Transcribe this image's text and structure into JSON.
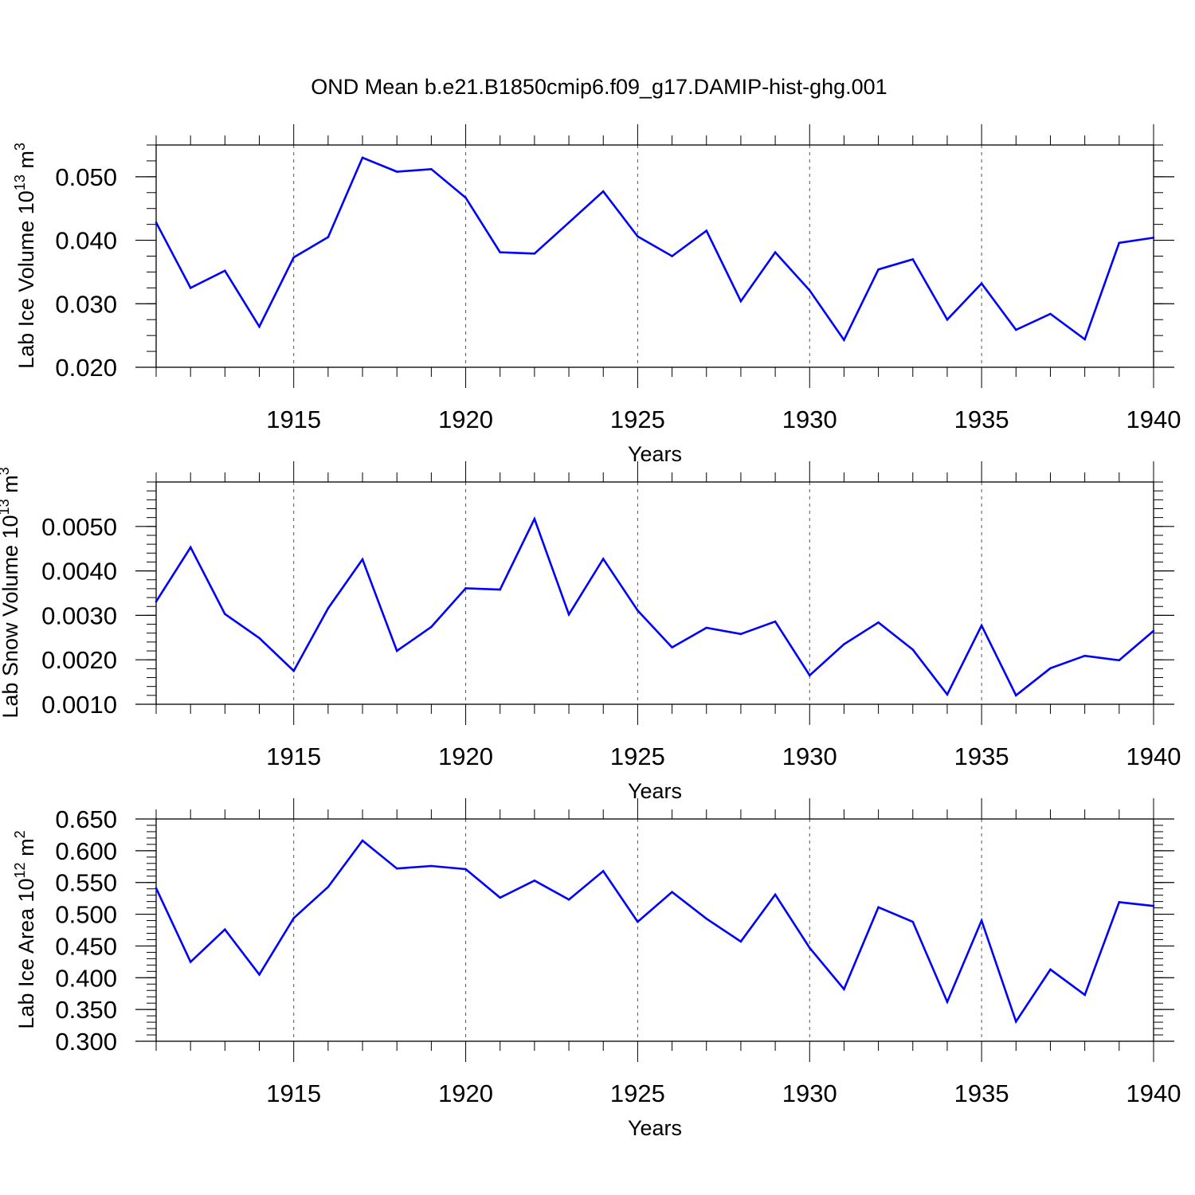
{
  "title": "OND Mean b.e21.B1850cmip6.f09_g17.DAMIP-hist-ghg.001",
  "colors": {
    "line": "#0000ff",
    "axis": "#000000",
    "grid": "#555555"
  },
  "chart_data": [
    {
      "type": "line",
      "name": "ice-volume",
      "ylabel": "Lab Ice Volume 10",
      "ylabel_exp": "13",
      "ylabel_unit": " m",
      "ylabel_unit_exp": "3",
      "xlabel": "Years",
      "xlim": [
        1911,
        1940
      ],
      "ylim": [
        0.02,
        0.055
      ],
      "yticks": [
        0.02,
        0.03,
        0.04,
        0.05
      ],
      "ytick_labels": [
        "0.020",
        "0.030",
        "0.040",
        "0.050"
      ],
      "yminor": 0.0025,
      "xticks": [
        1915,
        1920,
        1925,
        1930,
        1935,
        1940
      ],
      "xtick_labels": [
        "1915",
        "1920",
        "1925",
        "1930",
        "1935",
        "1940"
      ],
      "x": [
        1911,
        1912,
        1913,
        1914,
        1915,
        1916,
        1917,
        1918,
        1919,
        1920,
        1921,
        1922,
        1923,
        1924,
        1925,
        1926,
        1927,
        1928,
        1929,
        1930,
        1931,
        1932,
        1933,
        1934,
        1935,
        1936,
        1937,
        1938,
        1939,
        1940
      ],
      "values": [
        0.0428,
        0.0325,
        0.0352,
        0.0264,
        0.0373,
        0.0405,
        0.053,
        0.0508,
        0.0512,
        0.0467,
        0.0381,
        0.0379,
        0.0428,
        0.0477,
        0.0406,
        0.0375,
        0.0415,
        0.0304,
        0.0381,
        0.0321,
        0.0243,
        0.0354,
        0.037,
        0.0275,
        0.0332,
        0.0259,
        0.0284,
        0.0244,
        0.0396,
        0.0404
      ]
    },
    {
      "type": "line",
      "name": "snow-volume",
      "ylabel": "Lab Snow Volume 10",
      "ylabel_exp": "13",
      "ylabel_unit": " m",
      "ylabel_unit_exp": "3",
      "xlabel": "Years",
      "xlim": [
        1911,
        1940
      ],
      "ylim": [
        0.001,
        0.006
      ],
      "yticks": [
        0.001,
        0.002,
        0.003,
        0.004,
        0.005
      ],
      "ytick_labels": [
        "0.0010",
        "0.0020",
        "0.0030",
        "0.0040",
        "0.0050"
      ],
      "yminor": 0.0002,
      "xticks": [
        1915,
        1920,
        1925,
        1930,
        1935,
        1940
      ],
      "xtick_labels": [
        "1915",
        "1920",
        "1925",
        "1930",
        "1935",
        "1940"
      ],
      "x": [
        1911,
        1912,
        1913,
        1914,
        1915,
        1916,
        1917,
        1918,
        1919,
        1920,
        1921,
        1922,
        1923,
        1924,
        1925,
        1926,
        1927,
        1928,
        1929,
        1930,
        1931,
        1932,
        1933,
        1934,
        1935,
        1936,
        1937,
        1938,
        1939,
        1940
      ],
      "values": [
        0.00331,
        0.00453,
        0.00303,
        0.00249,
        0.00175,
        0.00316,
        0.00426,
        0.0022,
        0.00274,
        0.00361,
        0.00358,
        0.00517,
        0.00302,
        0.00427,
        0.00311,
        0.00228,
        0.00272,
        0.00258,
        0.00286,
        0.00165,
        0.00235,
        0.00284,
        0.00223,
        0.00122,
        0.00277,
        0.0012,
        0.00181,
        0.00209,
        0.00199,
        0.00265
      ]
    },
    {
      "type": "line",
      "name": "ice-area",
      "ylabel": "Lab Ice Area 10",
      "ylabel_exp": "12",
      "ylabel_unit": " m",
      "ylabel_unit_exp": "2",
      "xlabel": "Years",
      "xlim": [
        1911,
        1940
      ],
      "ylim": [
        0.3,
        0.65
      ],
      "yticks": [
        0.3,
        0.35,
        0.4,
        0.45,
        0.5,
        0.55,
        0.6,
        0.65
      ],
      "ytick_labels": [
        "0.300",
        "0.350",
        "0.400",
        "0.450",
        "0.500",
        "0.550",
        "0.600",
        "0.650"
      ],
      "yminor": 0.01,
      "xticks": [
        1915,
        1920,
        1925,
        1930,
        1935,
        1940
      ],
      "xtick_labels": [
        "1915",
        "1920",
        "1925",
        "1930",
        "1935",
        "1940"
      ],
      "x": [
        1911,
        1912,
        1913,
        1914,
        1915,
        1916,
        1917,
        1918,
        1919,
        1920,
        1921,
        1922,
        1923,
        1924,
        1925,
        1926,
        1927,
        1928,
        1929,
        1930,
        1931,
        1932,
        1933,
        1934,
        1935,
        1936,
        1937,
        1938,
        1939,
        1940
      ],
      "values": [
        0.541,
        0.425,
        0.476,
        0.405,
        0.494,
        0.543,
        0.616,
        0.572,
        0.576,
        0.571,
        0.526,
        0.553,
        0.523,
        0.568,
        0.488,
        0.535,
        0.493,
        0.457,
        0.531,
        0.447,
        0.382,
        0.511,
        0.488,
        0.362,
        0.49,
        0.331,
        0.413,
        0.373,
        0.519,
        0.513
      ]
    }
  ]
}
